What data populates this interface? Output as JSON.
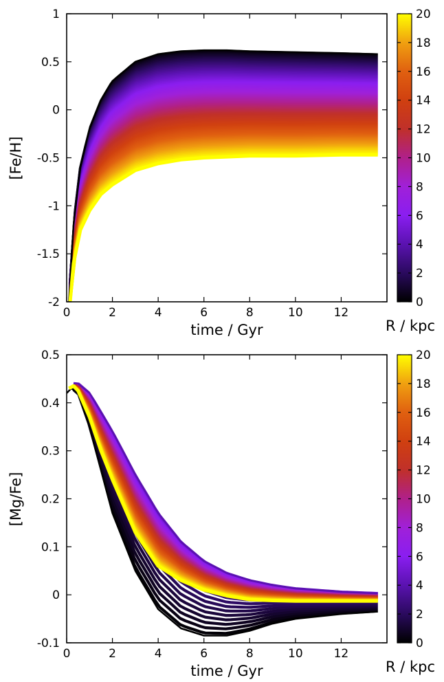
{
  "chart_data": [
    {
      "type": "line",
      "xlabel": "time / Gyr",
      "ylabel": "[Fe/H]",
      "xlim": [
        0,
        14
      ],
      "ylim": [
        -2,
        1
      ],
      "x_ticks": [
        "0",
        "2",
        "4",
        "6",
        "8",
        "10",
        "12"
      ],
      "y_ticks": [
        "-2",
        "-1.5",
        "-1",
        "-0.5",
        "0",
        "0.5",
        "1"
      ],
      "color_variable": "R / kpc",
      "colorbar_range": [
        0,
        20
      ],
      "colorbar_ticks": [
        "0",
        "2",
        "4",
        "6",
        "8",
        "10",
        "12",
        "14",
        "16",
        "18",
        "20"
      ],
      "colormap": [
        "#000000",
        "#2a0a5e",
        "#5a12b0",
        "#8a1ef0",
        "#a020d8",
        "#b0208a",
        "#c0302a",
        "#d04010",
        "#e06010",
        "#f0a010",
        "#ffff00"
      ],
      "series": [
        {
          "color_value": 0,
          "x": [
            0.1,
            0.3,
            0.6,
            1,
            1.5,
            2,
            3,
            4,
            5,
            6,
            7,
            8,
            10,
            12,
            13.6
          ],
          "y": [
            -2,
            -1.2,
            -0.6,
            -0.2,
            0.1,
            0.3,
            0.5,
            0.58,
            0.61,
            0.62,
            0.62,
            0.61,
            0.6,
            0.59,
            0.58
          ]
        },
        {
          "color_value": 20,
          "x": [
            0.15,
            0.3,
            0.6,
            1,
            1.5,
            2,
            3,
            4,
            5,
            6,
            7,
            8,
            10,
            12,
            13.6
          ],
          "y": [
            -2,
            -1.6,
            -1.25,
            -1.05,
            -0.88,
            -0.78,
            -0.63,
            -0.56,
            -0.52,
            -0.5,
            -0.49,
            -0.48,
            -0.48,
            -0.47,
            -0.47
          ]
        }
      ]
    },
    {
      "type": "line",
      "xlabel": "time / Gyr",
      "ylabel": "[Mg/Fe]",
      "xlim": [
        0,
        14
      ],
      "ylim": [
        -0.1,
        0.5
      ],
      "x_ticks": [
        "0",
        "2",
        "4",
        "6",
        "8",
        "10",
        "12"
      ],
      "y_ticks": [
        "-0.1",
        "0",
        "0.1",
        "0.2",
        "0.3",
        "0.4",
        "0.5"
      ],
      "color_variable": "R / kpc",
      "colorbar_range": [
        0,
        20
      ],
      "colorbar_ticks": [
        "0",
        "2",
        "4",
        "6",
        "8",
        "10",
        "12",
        "14",
        "16",
        "18",
        "20"
      ],
      "colormap": [
        "#000000",
        "#2a0a5e",
        "#5a12b0",
        "#8a1ef0",
        "#a020d8",
        "#b0208a",
        "#c0302a",
        "#d04010",
        "#e06010",
        "#f0a010",
        "#ffff00"
      ],
      "series": [
        {
          "color_value": 0,
          "x": [
            0,
            0.2,
            0.5,
            1,
            1.5,
            2,
            3,
            4,
            5,
            6,
            7,
            8,
            9,
            10,
            12,
            13.6
          ],
          "y": [
            0.42,
            0.43,
            0.42,
            0.35,
            0.26,
            0.17,
            0.05,
            -0.03,
            -0.07,
            -0.085,
            -0.085,
            -0.075,
            -0.06,
            -0.05,
            -0.04,
            -0.035
          ]
        },
        {
          "color_value": 20,
          "x": [
            0.1,
            0.3,
            0.5,
            1,
            1.5,
            2,
            3,
            4,
            5,
            6,
            7,
            8,
            9,
            10,
            12,
            13.6
          ],
          "y": [
            0.43,
            0.435,
            0.425,
            0.37,
            0.3,
            0.24,
            0.13,
            0.06,
            0.03,
            0.01,
            -0.002,
            -0.01,
            -0.012,
            -0.013,
            -0.013,
            -0.013
          ]
        },
        {
          "color_value": 4,
          "x": [
            0.3,
            0.5,
            1,
            1.5,
            2,
            3,
            4,
            5,
            6,
            7,
            8,
            9,
            10,
            12,
            13.6
          ],
          "y": [
            0.44,
            0.44,
            0.42,
            0.38,
            0.34,
            0.25,
            0.17,
            0.11,
            0.07,
            0.045,
            0.03,
            0.02,
            0.013,
            0.006,
            0.003
          ]
        }
      ]
    }
  ]
}
